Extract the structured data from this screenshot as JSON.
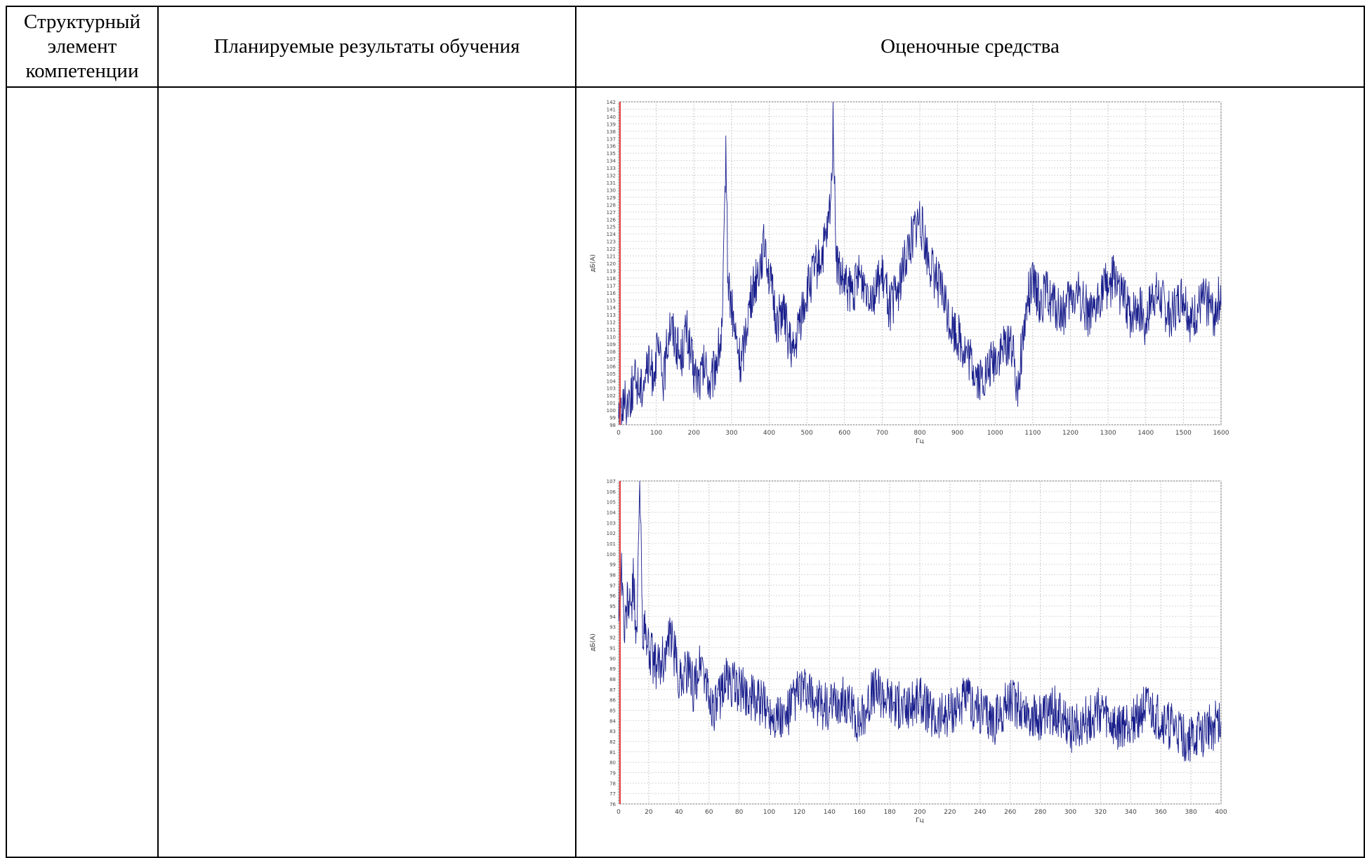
{
  "table": {
    "headers": [
      "Структурный элемент компетенции",
      "Планируемые результаты обучения",
      "Оценочные средства"
    ]
  },
  "chart_data": [
    {
      "type": "line",
      "xlabel": "Гц",
      "ylabel": "дБ(А)",
      "xlim": [
        0,
        1600
      ],
      "ylim": [
        98,
        142
      ],
      "xticks": [
        0,
        100,
        200,
        300,
        400,
        500,
        600,
        700,
        800,
        900,
        1000,
        1100,
        1200,
        1300,
        1400,
        1500,
        1600
      ],
      "yticks": [
        98,
        99,
        100,
        101,
        102,
        103,
        104,
        105,
        106,
        107,
        108,
        109,
        110,
        111,
        112,
        113,
        114,
        115,
        116,
        117,
        118,
        119,
        120,
        121,
        122,
        123,
        124,
        125,
        126,
        127,
        128,
        129,
        130,
        131,
        132,
        133,
        134,
        135,
        136,
        137,
        138,
        139,
        140,
        141,
        142
      ],
      "grid": true,
      "cursor_x": 0,
      "series": [
        {
          "color": "#1a1f8c",
          "x": [
            0,
            15,
            30,
            45,
            60,
            75,
            90,
            105,
            120,
            135,
            150,
            165,
            180,
            190,
            200,
            215,
            230,
            245,
            260,
            275,
            280,
            285,
            290,
            300,
            310,
            325,
            340,
            355,
            370,
            380,
            390,
            400,
            410,
            420,
            435,
            450,
            465,
            480,
            500,
            520,
            540,
            555,
            565,
            570,
            575,
            580,
            590,
            600,
            620,
            640,
            660,
            680,
            700,
            720,
            740,
            760,
            780,
            800,
            820,
            840,
            860,
            880,
            900,
            920,
            940,
            960,
            980,
            1000,
            1020,
            1040,
            1060,
            1070,
            1080,
            1090,
            1100,
            1120,
            1140,
            1160,
            1180,
            1200,
            1220,
            1240,
            1260,
            1280,
            1300,
            1320,
            1340,
            1360,
            1380,
            1400,
            1420,
            1440,
            1460,
            1480,
            1500,
            1520,
            1540,
            1560,
            1580,
            1600
          ],
          "values": [
            100,
            101,
            102,
            104,
            103,
            106,
            105,
            108,
            104,
            112,
            110,
            107,
            111,
            108,
            105,
            104,
            106,
            103,
            107,
            110,
            122,
            137,
            118,
            114,
            110,
            106,
            112,
            116,
            119,
            121,
            123,
            118,
            115,
            112,
            114,
            110,
            107,
            112,
            116,
            119,
            121,
            124,
            130,
            141,
            126,
            120,
            118,
            117,
            116,
            118,
            117,
            116,
            118,
            114,
            116,
            120,
            124,
            126,
            121,
            118,
            116,
            112,
            110,
            108,
            106,
            104,
            105,
            107,
            108,
            110,
            103,
            108,
            112,
            116,
            117,
            115,
            116,
            114,
            113,
            115,
            116,
            114,
            112,
            116,
            117,
            118,
            115,
            113,
            114,
            112,
            116,
            115,
            113,
            114,
            116,
            112,
            114,
            115,
            113,
            116
          ]
        }
      ]
    },
    {
      "type": "line",
      "xlabel": "Гц",
      "ylabel": "дБ(А)",
      "xlim": [
        0,
        400
      ],
      "ylim": [
        76,
        107
      ],
      "xticks": [
        0,
        20,
        40,
        60,
        80,
        100,
        120,
        140,
        160,
        180,
        200,
        220,
        240,
        260,
        280,
        300,
        320,
        340,
        360,
        380,
        400
      ],
      "yticks": [
        76,
        77,
        78,
        79,
        80,
        81,
        82,
        83,
        84,
        85,
        86,
        87,
        88,
        89,
        90,
        91,
        92,
        93,
        94,
        95,
        96,
        97,
        98,
        99,
        100,
        101,
        102,
        103,
        104,
        105,
        106,
        107
      ],
      "grid": true,
      "cursor_x": 0,
      "series": [
        {
          "color": "#1a1f8c",
          "x": [
            0,
            2,
            4,
            6,
            8,
            10,
            12,
            14,
            16,
            20,
            25,
            30,
            35,
            40,
            45,
            50,
            55,
            60,
            65,
            70,
            80,
            90,
            100,
            110,
            120,
            130,
            140,
            150,
            160,
            170,
            180,
            190,
            200,
            210,
            220,
            230,
            240,
            250,
            260,
            270,
            280,
            290,
            300,
            310,
            320,
            330,
            340,
            350,
            360,
            370,
            380,
            390,
            400
          ],
          "values": [
            95,
            99,
            92,
            96,
            94,
            98,
            91,
            107,
            93,
            91,
            89,
            90,
            92,
            88,
            89,
            87,
            90,
            86,
            85,
            88,
            87,
            86,
            85,
            84,
            87,
            86,
            85,
            86,
            84,
            87,
            86,
            85,
            86,
            84,
            85,
            86,
            85,
            84,
            86,
            85,
            84,
            85,
            83,
            84,
            85,
            83,
            84,
            85,
            84,
            83,
            82,
            83,
            84
          ]
        }
      ]
    }
  ]
}
